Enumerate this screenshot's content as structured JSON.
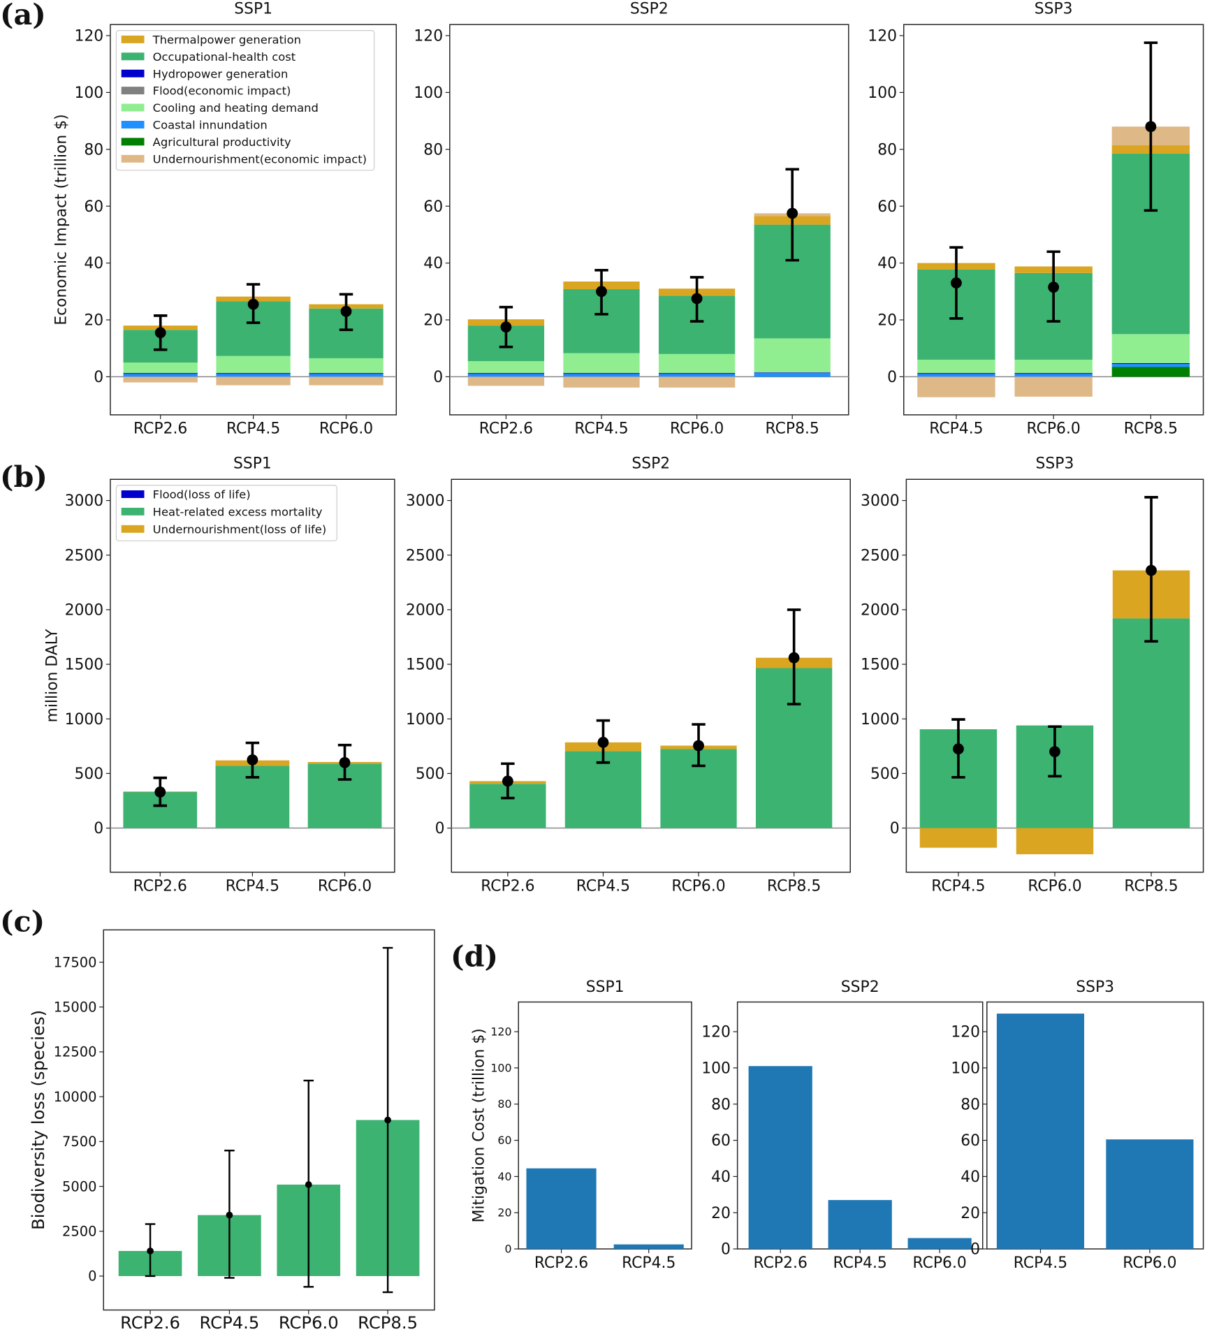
{
  "colors": {
    "thermal": "#DAA520",
    "occupational": "#3CB371",
    "hydro": "#0000CD",
    "flood": "#808080",
    "cooling": "#90EE90",
    "coastal": "#1E90FF",
    "agri": "#008000",
    "under_econ": "#DEB887",
    "under_life": "#DAA520",
    "heat": "#3CB371",
    "flood_life": "#0000CD",
    "biodiv": "#3CB371",
    "mitigation": "#1F77B4"
  },
  "panel_labels": [
    "(a)",
    "(b)",
    "(c)",
    "(d)"
  ],
  "chart_data": [
    {
      "id": "a",
      "type": "bar",
      "stacked": true,
      "ylabel": "Economic Impact (trillion $)",
      "ylim": [
        -13.4,
        123.9
      ],
      "yticks": [
        0,
        20,
        40,
        60,
        80,
        100,
        120
      ],
      "legend": {
        "placement": "top-left",
        "entries": [
          {
            "key": "thermal",
            "label": "Thermalpower generation"
          },
          {
            "key": "occupational",
            "label": "Occupational-health cost"
          },
          {
            "key": "hydro",
            "label": "Hydropower generation"
          },
          {
            "key": "flood",
            "label": "Flood(economic impact)"
          },
          {
            "key": "cooling",
            "label": "Cooling and heating demand"
          },
          {
            "key": "coastal",
            "label": "Coastal innundation"
          },
          {
            "key": "agri",
            "label": "Agricultural productivity"
          },
          {
            "key": "under_econ",
            "label": "Undernourishment(economic impact)"
          }
        ]
      },
      "stack_order": [
        "agri",
        "coastal",
        "hydro",
        "flood",
        "cooling",
        "occupational",
        "thermal",
        "under_econ"
      ],
      "subplots": [
        {
          "title": "SSP1",
          "categories": [
            "RCP2.6",
            "RCP4.5",
            "RCP6.0"
          ],
          "values": [
            {
              "agri": 0,
              "coastal": 1,
              "hydro": 0.3,
              "flood": 0,
              "cooling": 3.7,
              "occupational": 11.5,
              "thermal": 1.5,
              "under_econ": -2
            },
            {
              "agri": 0,
              "coastal": 1,
              "hydro": 0.3,
              "flood": 0,
              "cooling": 6,
              "occupational": 19.2,
              "thermal": 1.7,
              "under_econ": -3
            },
            {
              "agri": 0,
              "coastal": 1,
              "hydro": 0.3,
              "flood": 0,
              "cooling": 5.2,
              "occupational": 17.5,
              "thermal": 1.5,
              "under_econ": -3
            }
          ],
          "mean": [
            15.5,
            25.5,
            23
          ],
          "err_low": [
            9.5,
            19,
            16.5
          ],
          "err_high": [
            21.5,
            32.5,
            29
          ]
        },
        {
          "title": "SSP2",
          "categories": [
            "RCP2.6",
            "RCP4.5",
            "RCP6.0",
            "RCP8.5"
          ],
          "values": [
            {
              "agri": 0,
              "coastal": 1,
              "hydro": 0.3,
              "flood": 0,
              "cooling": 4.2,
              "occupational": 12.5,
              "thermal": 2.2,
              "under_econ": -3.2
            },
            {
              "agri": 0,
              "coastal": 1,
              "hydro": 0.3,
              "flood": 0,
              "cooling": 7,
              "occupational": 22.5,
              "thermal": 2.7,
              "under_econ": -3.8
            },
            {
              "agri": 0,
              "coastal": 1,
              "hydro": 0.3,
              "flood": 0,
              "cooling": 6.7,
              "occupational": 20.5,
              "thermal": 2.5,
              "under_econ": -3.8
            },
            {
              "agri": 0,
              "coastal": 1.3,
              "hydro": 0.2,
              "flood": 0,
              "cooling": 12,
              "occupational": 40,
              "thermal": 3,
              "under_econ": 1
            }
          ],
          "mean": [
            17.5,
            30,
            27.5,
            57.5
          ],
          "err_low": [
            10.5,
            22,
            19.5,
            41
          ],
          "err_high": [
            24.5,
            37.5,
            35,
            73
          ]
        },
        {
          "title": "SSP3",
          "categories": [
            "RCP4.5",
            "RCP6.0",
            "RCP8.5"
          ],
          "values": [
            {
              "agri": 0,
              "coastal": 1,
              "hydro": 0.3,
              "flood": 0,
              "cooling": 4.7,
              "occupational": 31.7,
              "thermal": 2.3,
              "under_econ": -7.2
            },
            {
              "agri": 0,
              "coastal": 1,
              "hydro": 0.3,
              "flood": 0,
              "cooling": 4.7,
              "occupational": 30.5,
              "thermal": 2.3,
              "under_econ": -7
            },
            {
              "agri": 3.5,
              "coastal": 1,
              "hydro": 0.3,
              "flood": 0,
              "cooling": 10.2,
              "occupational": 63.5,
              "thermal": 3,
              "under_econ": 6.5
            }
          ],
          "mean": [
            33,
            31.5,
            88
          ],
          "err_low": [
            20.5,
            19.5,
            58.5
          ],
          "err_high": [
            45.5,
            44,
            117.5
          ]
        }
      ]
    },
    {
      "id": "b",
      "type": "bar",
      "stacked": true,
      "ylabel": "million DALY",
      "ylim": [
        -404,
        3194
      ],
      "yticks": [
        0,
        500,
        1000,
        1500,
        2000,
        2500,
        3000
      ],
      "legend": {
        "placement": "top-left",
        "entries": [
          {
            "key": "flood_life",
            "label": "Flood(loss of life)"
          },
          {
            "key": "heat",
            "label": "Heat-related excess mortality"
          },
          {
            "key": "under_life",
            "label": "Undernourishment(loss of life)"
          }
        ]
      },
      "stack_order": [
        "flood_life",
        "heat",
        "under_life"
      ],
      "subplots": [
        {
          "title": "SSP1",
          "categories": [
            "RCP2.6",
            "RCP4.5",
            "RCP6.0"
          ],
          "values": [
            {
              "flood_life": 0,
              "heat": 330,
              "under_life": 5
            },
            {
              "flood_life": 0,
              "heat": 570,
              "under_life": 50
            },
            {
              "flood_life": 0,
              "heat": 590,
              "under_life": 15
            }
          ],
          "mean": [
            330,
            625,
            600
          ],
          "err_low": [
            205,
            465,
            445
          ],
          "err_high": [
            460,
            780,
            760
          ]
        },
        {
          "title": "SSP2",
          "categories": [
            "RCP2.6",
            "RCP4.5",
            "RCP6.0",
            "RCP8.5"
          ],
          "values": [
            {
              "flood_life": 0,
              "heat": 405,
              "under_life": 25
            },
            {
              "flood_life": 0,
              "heat": 705,
              "under_life": 80
            },
            {
              "flood_life": 0,
              "heat": 725,
              "under_life": 30
            },
            {
              "flood_life": 0,
              "heat": 1465,
              "under_life": 95
            }
          ],
          "mean": [
            430,
            785,
            755,
            1560
          ],
          "err_low": [
            275,
            600,
            570,
            1135
          ],
          "err_high": [
            590,
            985,
            950,
            2000
          ]
        },
        {
          "title": "SSP3",
          "categories": [
            "RCP4.5",
            "RCP6.0",
            "RCP8.5"
          ],
          "values": [
            {
              "flood_life": 0,
              "heat": 905,
              "under_life": -180
            },
            {
              "flood_life": 0,
              "heat": 940,
              "under_life": -240
            },
            {
              "flood_life": 0,
              "heat": 1920,
              "under_life": 440
            }
          ],
          "mean": [
            725,
            700,
            2360
          ],
          "err_low": [
            465,
            475,
            1710
          ],
          "err_high": [
            995,
            930,
            3030
          ]
        }
      ]
    },
    {
      "id": "c",
      "type": "bar",
      "ylabel": "Biodiversity loss (species)",
      "ylim": [
        -1892,
        19300
      ],
      "yticks": [
        0,
        2500,
        5000,
        7500,
        10000,
        12500,
        15000,
        17500
      ],
      "subplots": [
        {
          "title": "",
          "categories": [
            "RCP2.6",
            "RCP4.5",
            "RCP6.0",
            "RCP8.5"
          ],
          "values": [
            1400,
            3400,
            5100,
            8700
          ],
          "mean": [
            1400,
            3400,
            5100,
            8700
          ],
          "err_low": [
            0,
            -100,
            -600,
            -900
          ],
          "err_high": [
            2900,
            7000,
            10900,
            18300
          ]
        }
      ]
    },
    {
      "id": "d",
      "type": "bar",
      "ylabel": "Mitigation Cost (trillion $)",
      "ylim": [
        0,
        136.4
      ],
      "yticks": [
        0,
        20,
        40,
        60,
        80,
        100,
        120
      ],
      "subplots": [
        {
          "title": "SSP1",
          "categories": [
            "RCP2.6",
            "RCP4.5"
          ],
          "values": [
            44.5,
            2.5
          ]
        },
        {
          "title": "SSP2",
          "categories": [
            "RCP2.6",
            "RCP4.5",
            "RCP6.0"
          ],
          "values": [
            101,
            27,
            6
          ]
        },
        {
          "title": "SSP3",
          "categories": [
            "RCP4.5",
            "RCP6.0"
          ],
          "values": [
            130,
            60.5
          ]
        }
      ]
    }
  ]
}
